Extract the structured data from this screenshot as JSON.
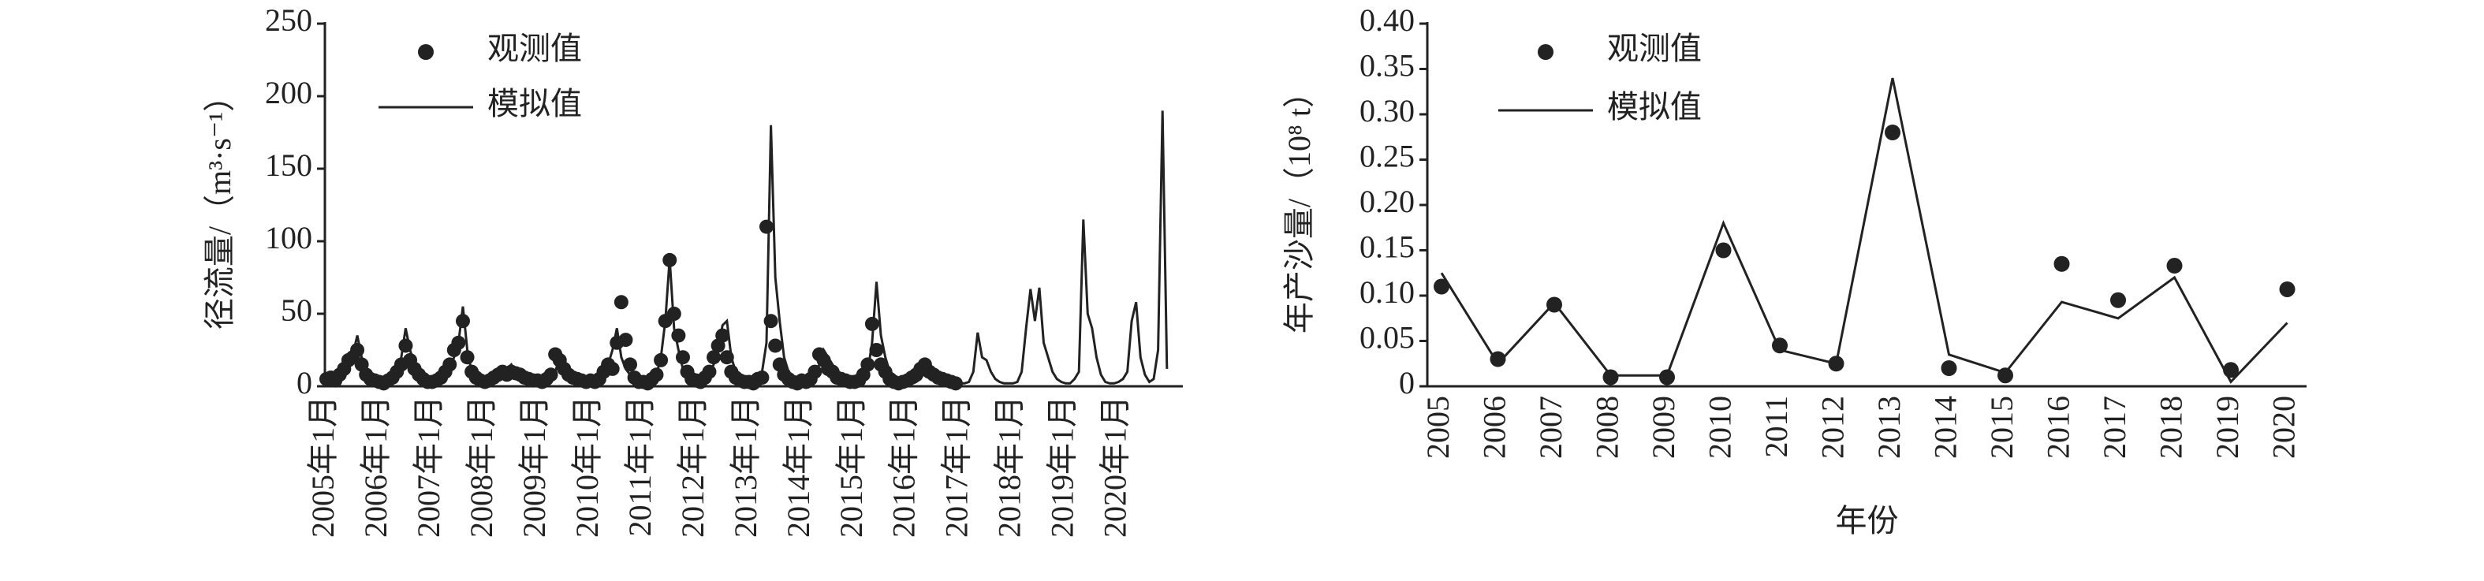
{
  "chart_data": [
    {
      "type": "line",
      "y_label": "径流量/（m³·s⁻¹）",
      "categories": [
        "2005年1月",
        null,
        null,
        null,
        null,
        null,
        null,
        null,
        null,
        null,
        null,
        null,
        "2006年1月",
        null,
        null,
        null,
        null,
        null,
        null,
        null,
        null,
        null,
        null,
        null,
        "2007年1月",
        null,
        null,
        null,
        null,
        null,
        null,
        null,
        null,
        null,
        null,
        null,
        "2008年1月",
        null,
        null,
        null,
        null,
        null,
        null,
        null,
        null,
        null,
        null,
        null,
        "2009年1月",
        null,
        null,
        null,
        null,
        null,
        null,
        null,
        null,
        null,
        null,
        null,
        "2010年1月",
        null,
        null,
        null,
        null,
        null,
        null,
        null,
        null,
        null,
        null,
        null,
        "2011年1月",
        null,
        null,
        null,
        null,
        null,
        null,
        null,
        null,
        null,
        null,
        null,
        "2012年1月",
        null,
        null,
        null,
        null,
        null,
        null,
        null,
        null,
        null,
        null,
        null,
        "2013年1月",
        null,
        null,
        null,
        null,
        null,
        null,
        null,
        null,
        null,
        null,
        null,
        "2014年1月",
        null,
        null,
        null,
        null,
        null,
        null,
        null,
        null,
        null,
        null,
        null,
        "2015年1月",
        null,
        null,
        null,
        null,
        null,
        null,
        null,
        null,
        null,
        null,
        null,
        "2016年1月",
        null,
        null,
        null,
        null,
        null,
        null,
        null,
        null,
        null,
        null,
        null,
        "2017年1月",
        null,
        null,
        null,
        null,
        null,
        null,
        null,
        null,
        null,
        null,
        null,
        "2018年1月",
        null,
        null,
        null,
        null,
        null,
        null,
        null,
        null,
        null,
        null,
        null,
        "2019年1月",
        null,
        null,
        null,
        null,
        null,
        null,
        null,
        null,
        null,
        null,
        null,
        "2020年1月",
        null,
        null,
        null,
        null,
        null,
        null,
        null,
        null,
        null,
        null,
        null
      ],
      "series": [
        {
          "name": "观测值",
          "mode": "markers",
          "color": "#222222",
          "values": [
            5,
            6,
            4,
            8,
            12,
            18,
            20,
            25,
            15,
            8,
            5,
            4,
            3,
            2,
            4,
            6,
            10,
            15,
            28,
            18,
            12,
            8,
            5,
            3,
            3,
            4,
            6,
            10,
            15,
            25,
            30,
            45,
            20,
            10,
            6,
            4,
            3,
            4,
            6,
            8,
            10,
            8,
            10,
            9,
            8,
            6,
            5,
            4,
            4,
            3,
            5,
            8,
            22,
            18,
            12,
            8,
            6,
            5,
            4,
            3,
            4,
            3,
            5,
            10,
            15,
            12,
            30,
            58,
            32,
            15,
            6,
            3,
            3,
            2,
            5,
            8,
            18,
            45,
            87,
            50,
            35,
            20,
            10,
            5,
            4,
            3,
            6,
            10,
            20,
            28,
            35,
            20,
            10,
            6,
            4,
            3,
            3,
            2,
            5,
            6,
            110,
            45,
            28,
            15,
            8,
            5,
            3,
            2,
            4,
            3,
            5,
            10,
            22,
            18,
            12,
            10,
            6,
            5,
            4,
            3,
            3,
            4,
            8,
            15,
            43,
            25,
            15,
            10,
            5,
            3,
            2,
            3,
            4,
            6,
            8,
            12,
            15,
            10,
            8,
            6,
            5,
            4,
            3,
            2,
            null,
            null,
            null,
            null,
            null,
            null,
            null,
            null,
            null,
            null,
            null,
            null,
            null,
            null,
            null,
            null,
            null,
            null,
            null,
            null,
            null,
            null,
            null,
            null,
            null,
            null,
            null,
            null,
            null,
            null,
            null,
            null,
            null,
            null,
            null,
            null,
            null,
            null,
            null,
            null,
            null,
            null,
            null,
            null,
            null,
            null,
            null,
            null
          ]
        },
        {
          "name": "模拟值",
          "mode": "lines",
          "color": "#222222",
          "values": [
            3,
            2,
            3,
            5,
            8,
            15,
            22,
            35,
            20,
            10,
            5,
            3,
            2,
            2,
            3,
            5,
            10,
            20,
            40,
            25,
            15,
            8,
            4,
            3,
            3,
            2,
            3,
            8,
            12,
            20,
            30,
            55,
            25,
            10,
            5,
            3,
            2,
            2,
            3,
            5,
            8,
            12,
            15,
            10,
            8,
            6,
            4,
            3,
            3,
            2,
            3,
            5,
            10,
            20,
            15,
            12,
            8,
            6,
            4,
            3,
            3,
            2,
            4,
            8,
            15,
            25,
            40,
            20,
            12,
            8,
            5,
            3,
            3,
            2,
            4,
            8,
            20,
            45,
            88,
            40,
            25,
            12,
            6,
            3,
            3,
            2,
            4,
            8,
            15,
            25,
            42,
            45,
            20,
            10,
            5,
            3,
            3,
            2,
            4,
            10,
            30,
            180,
            75,
            45,
            20,
            10,
            5,
            3,
            3,
            2,
            4,
            8,
            15,
            25,
            20,
            15,
            10,
            8,
            5,
            3,
            3,
            2,
            4,
            10,
            30,
            72,
            35,
            20,
            10,
            8,
            5,
            3,
            3,
            2,
            3,
            5,
            10,
            15,
            12,
            10,
            8,
            6,
            4,
            3,
            2,
            2,
            3,
            10,
            37,
            20,
            18,
            10,
            5,
            3,
            2,
            2,
            2,
            3,
            10,
            40,
            67,
            45,
            68,
            30,
            20,
            10,
            5,
            3,
            2,
            2,
            5,
            10,
            115,
            50,
            40,
            20,
            8,
            3,
            2,
            2,
            3,
            5,
            10,
            45,
            58,
            20,
            8,
            3,
            5,
            25,
            190,
            12
          ]
        }
      ],
      "ylim": [
        0,
        250
      ],
      "yticks": [
        0,
        50,
        100,
        150,
        200,
        250
      ]
    },
    {
      "type": "line",
      "y_label": "年产沙量/（10⁸ t）",
      "x_label": "年份",
      "categories": [
        "2005",
        "2006",
        "2007",
        "2008",
        "2009",
        "2010",
        "2011",
        "2012",
        "2013",
        "2014",
        "2015",
        "2016",
        "2017",
        "2018",
        "2019",
        "2020"
      ],
      "series": [
        {
          "name": "观测值",
          "mode": "markers",
          "color": "#222222",
          "values": [
            0.11,
            0.03,
            0.09,
            0.01,
            0.01,
            0.15,
            0.045,
            0.025,
            0.28,
            0.02,
            0.012,
            0.135,
            0.095,
            0.133,
            0.018,
            0.107
          ]
        },
        {
          "name": "模拟值",
          "mode": "lines",
          "color": "#222222",
          "values": [
            0.125,
            0.025,
            0.092,
            0.012,
            0.012,
            0.18,
            0.04,
            0.025,
            0.34,
            0.035,
            0.015,
            0.093,
            0.075,
            0.12,
            0.005,
            0.07
          ]
        }
      ],
      "ylim": [
        0,
        0.4
      ],
      "yticks": [
        0,
        0.05,
        {
          "value": 0.1,
          "label": "0.10"
        },
        0.15,
        {
          "value": 0.2,
          "label": "0.20"
        },
        0.25,
        {
          "value": 0.3,
          "label": "0.30"
        },
        0.35,
        {
          "value": 0.4,
          "label": "0.40"
        }
      ]
    }
  ]
}
